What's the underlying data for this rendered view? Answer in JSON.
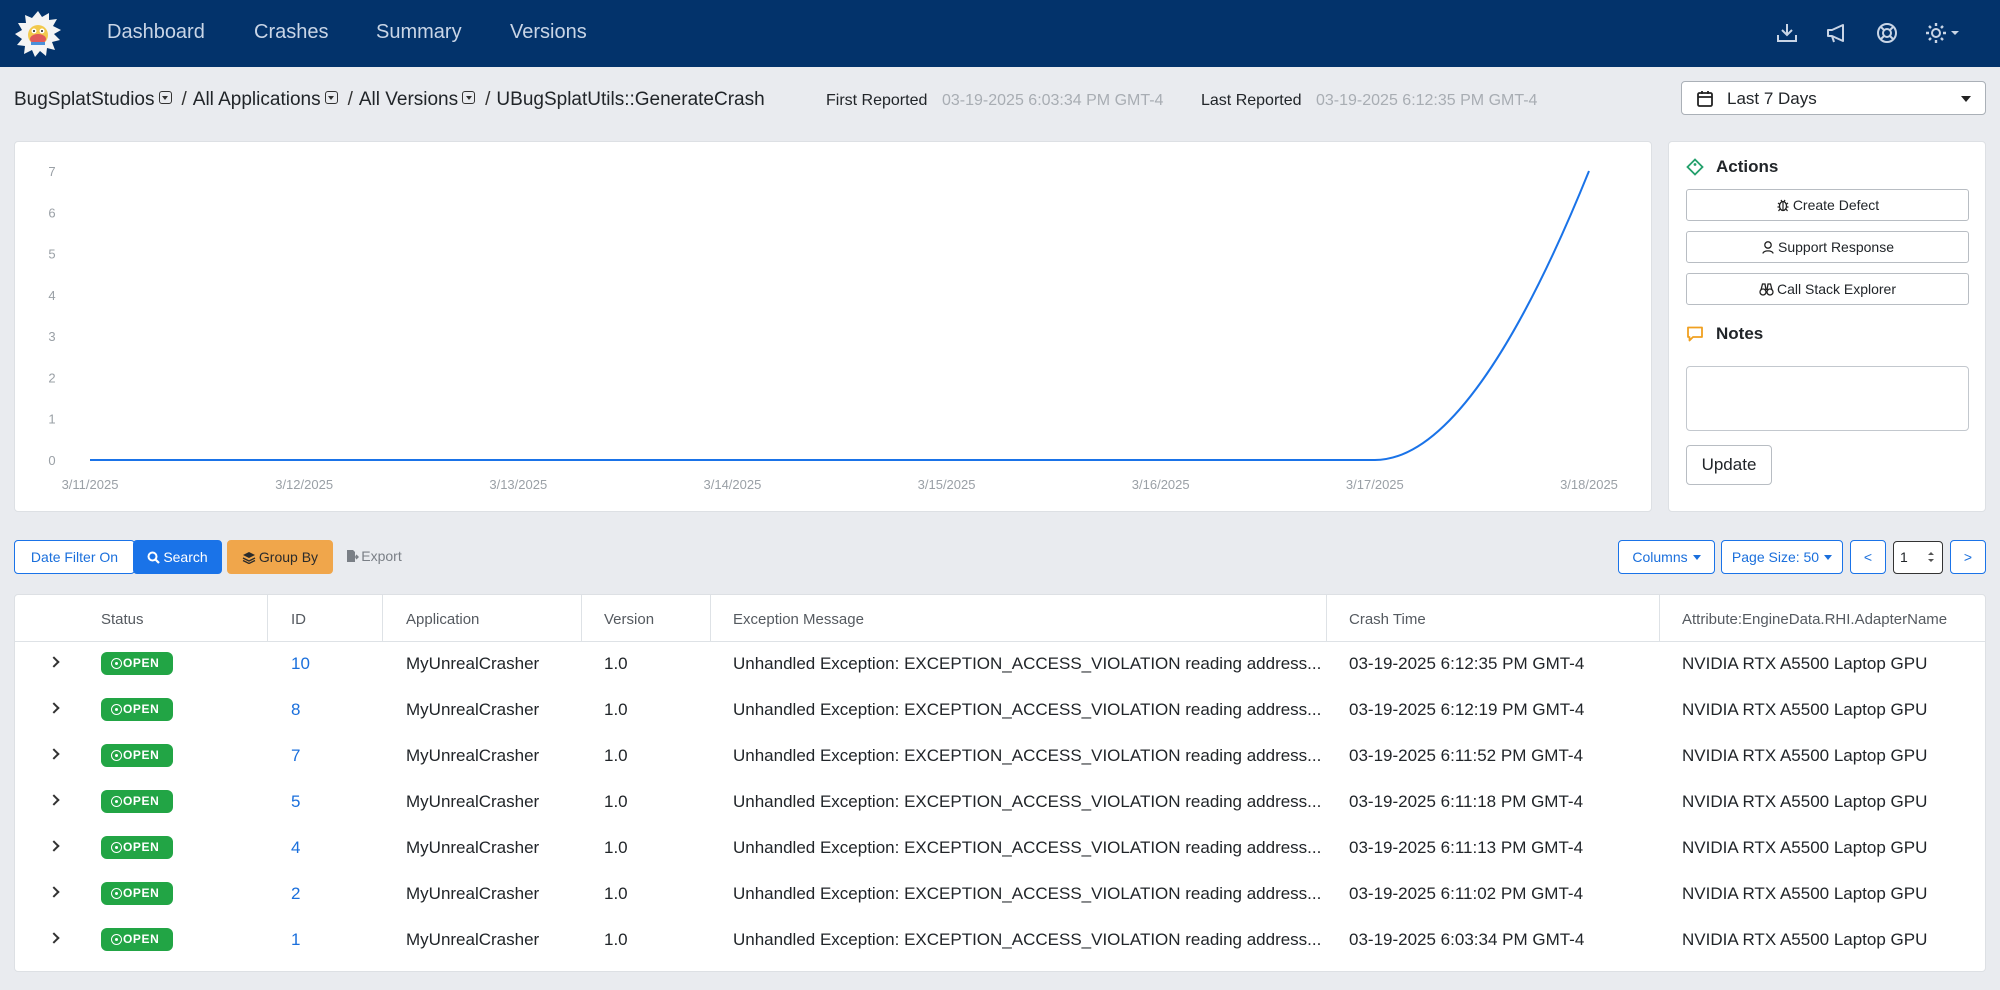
{
  "nav": {
    "links": [
      "Dashboard",
      "Crashes",
      "Summary",
      "Versions"
    ],
    "icons": [
      "download-icon",
      "megaphone-icon",
      "lifebuoy-icon",
      "gear-icon"
    ]
  },
  "breadcrumb": {
    "database": "BugSplatStudios",
    "applications": "All Applications",
    "versions": "All Versions",
    "stack_key": "UBugSplatUtils::GenerateCrash",
    "sep": "/"
  },
  "reported": {
    "first_label": "First Reported",
    "first_value": "03-19-2025 6:03:34 PM GMT-4",
    "last_label": "Last Reported",
    "last_value": "03-19-2025 6:12:35 PM GMT-4"
  },
  "date_range": {
    "selected": "Last 7 Days"
  },
  "chart_data": {
    "type": "line",
    "x": [
      "3/11/2025",
      "3/12/2025",
      "3/13/2025",
      "3/14/2025",
      "3/15/2025",
      "3/16/2025",
      "3/17/2025",
      "3/18/2025"
    ],
    "series": [
      {
        "values": [
          0,
          0,
          0,
          0,
          0,
          0,
          0,
          7
        ]
      }
    ],
    "yticks": [
      0,
      1,
      2,
      3,
      4,
      5,
      6,
      7
    ],
    "ylim": [
      0,
      7
    ],
    "color": "#1a73e8",
    "grid": false,
    "title": "",
    "xlabel": "",
    "ylabel": ""
  },
  "actions": {
    "title": "Actions",
    "create_defect": "Create Defect",
    "support_response": "Support Response",
    "call_stack_explorer": "Call Stack Explorer"
  },
  "notes": {
    "title": "Notes",
    "value": "",
    "update_label": "Update"
  },
  "toolbar": {
    "date_filter": "Date Filter On",
    "search": "Search",
    "group_by": "Group By",
    "export": "Export",
    "columns": "Columns",
    "page_size": "Page Size: 50",
    "prev": "<",
    "page": "1",
    "next": ">"
  },
  "table": {
    "headers": [
      "Status",
      "ID",
      "Application",
      "Version",
      "Exception Message",
      "Crash Time",
      "Attribute:EngineData.RHI.AdapterName"
    ],
    "rows": [
      {
        "status": "OPEN",
        "id": "10",
        "application": "MyUnrealCrasher",
        "version": "1.0",
        "message": "Unhandled Exception: EXCEPTION_ACCESS_VIOLATION reading address...",
        "time": "03-19-2025 6:12:35 PM GMT-4",
        "adapter": "NVIDIA RTX A5500 Laptop GPU"
      },
      {
        "status": "OPEN",
        "id": "8",
        "application": "MyUnrealCrasher",
        "version": "1.0",
        "message": "Unhandled Exception: EXCEPTION_ACCESS_VIOLATION reading address...",
        "time": "03-19-2025 6:12:19 PM GMT-4",
        "adapter": "NVIDIA RTX A5500 Laptop GPU"
      },
      {
        "status": "OPEN",
        "id": "7",
        "application": "MyUnrealCrasher",
        "version": "1.0",
        "message": "Unhandled Exception: EXCEPTION_ACCESS_VIOLATION reading address...",
        "time": "03-19-2025 6:11:52 PM GMT-4",
        "adapter": "NVIDIA RTX A5500 Laptop GPU"
      },
      {
        "status": "OPEN",
        "id": "5",
        "application": "MyUnrealCrasher",
        "version": "1.0",
        "message": "Unhandled Exception: EXCEPTION_ACCESS_VIOLATION reading address...",
        "time": "03-19-2025 6:11:18 PM GMT-4",
        "adapter": "NVIDIA RTX A5500 Laptop GPU"
      },
      {
        "status": "OPEN",
        "id": "4",
        "application": "MyUnrealCrasher",
        "version": "1.0",
        "message": "Unhandled Exception: EXCEPTION_ACCESS_VIOLATION reading address...",
        "time": "03-19-2025 6:11:13 PM GMT-4",
        "adapter": "NVIDIA RTX A5500 Laptop GPU"
      },
      {
        "status": "OPEN",
        "id": "2",
        "application": "MyUnrealCrasher",
        "version": "1.0",
        "message": "Unhandled Exception: EXCEPTION_ACCESS_VIOLATION reading address...",
        "time": "03-19-2025 6:11:02 PM GMT-4",
        "adapter": "NVIDIA RTX A5500 Laptop GPU"
      },
      {
        "status": "OPEN",
        "id": "1",
        "application": "MyUnrealCrasher",
        "version": "1.0",
        "message": "Unhandled Exception: EXCEPTION_ACCESS_VIOLATION reading address...",
        "time": "03-19-2025 6:03:34 PM GMT-4",
        "adapter": "NVIDIA RTX A5500 Laptop GPU"
      }
    ]
  }
}
